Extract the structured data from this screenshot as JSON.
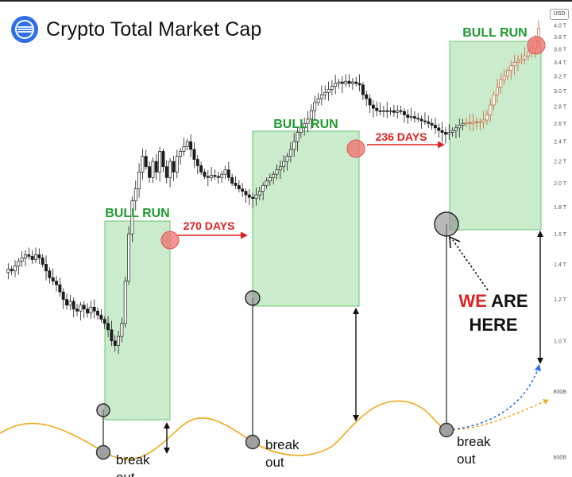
{
  "header": {
    "title": "Crypto Total Market Cap",
    "currency_badge": "USD"
  },
  "chart_data": {
    "type": "candlestick",
    "title": "Crypto Total Market Cap",
    "y_axis": {
      "scale": "log",
      "unit": "USD",
      "ticks": [
        {
          "label": "600B",
          "value": 0.6
        },
        {
          "label": "800B",
          "value": 0.8
        },
        {
          "label": "1.0 T",
          "value": 1.0
        },
        {
          "label": "1.2 T",
          "value": 1.2
        },
        {
          "label": "1.4 T",
          "value": 1.4
        },
        {
          "label": "1.6 T",
          "value": 1.6
        },
        {
          "label": "1.8 T",
          "value": 1.8
        },
        {
          "label": "2.0 T",
          "value": 2.0
        },
        {
          "label": "2.2 T",
          "value": 2.2
        },
        {
          "label": "2.4 T",
          "value": 2.4
        },
        {
          "label": "2.6 T",
          "value": 2.6
        },
        {
          "label": "2.8 T",
          "value": 2.8
        },
        {
          "label": "3.0 T",
          "value": 3.0
        },
        {
          "label": "3.2 T",
          "value": 3.2
        },
        {
          "label": "3.4 T",
          "value": 3.4
        },
        {
          "label": "3.6 T",
          "value": 3.6
        },
        {
          "label": "3.8 T",
          "value": 3.8
        },
        {
          "label": "4.0 T",
          "value": 4.0
        }
      ]
    },
    "colors": {
      "up": "#1c1c1c",
      "down": "#1c1c1c",
      "up_bull3": "#c5623a",
      "zone_fill": "#c6ebc8",
      "zone_stroke": "#5fbf64",
      "bull_label": "#1e9b2d",
      "days_label": "#e02020",
      "marker_top": "#f26d6d",
      "marker_bottom": "#8a8a8a",
      "wave": "#f0a81c",
      "projection_blue": "#2f6fe8",
      "projection_orange": "#f0a81c"
    },
    "bull_runs": [
      {
        "label": "BULL RUN"
      },
      {
        "label": "BULL RUN"
      },
      {
        "label": "BULL RUN"
      }
    ],
    "day_annotations": [
      {
        "label": "270 DAYS",
        "days": 270
      },
      {
        "label": "236 DAYS",
        "days": 236
      }
    ],
    "breakout_labels": [
      {
        "label": "break\nout"
      },
      {
        "label": "break\nout"
      },
      {
        "label": "break\nout"
      }
    ],
    "callout": {
      "prefix": "WE",
      "rest": "ARE",
      "line2": "HERE"
    },
    "series": [
      {
        "name": "market cap",
        "values": [
          1.35,
          1.37,
          1.36,
          1.39,
          1.42,
          1.44,
          1.46,
          1.45,
          1.43,
          1.46,
          1.44,
          1.4,
          1.36,
          1.32,
          1.3,
          1.28,
          1.24,
          1.2,
          1.17,
          1.19,
          1.15,
          1.14,
          1.17,
          1.15,
          1.13,
          1.16,
          1.14,
          1.12,
          1.1,
          1.08,
          1.05,
          1.0,
          0.98,
          1.02,
          1.08,
          1.3,
          1.6,
          1.85,
          1.95,
          2.1,
          2.25,
          2.15,
          2.05,
          2.2,
          2.1,
          2.3,
          2.15,
          2.05,
          2.2,
          2.1,
          2.25,
          2.3,
          2.35,
          2.4,
          2.32,
          2.22,
          2.16,
          2.1,
          2.06,
          2.05,
          2.07,
          2.06,
          2.05,
          2.08,
          2.12,
          2.05,
          2.0,
          1.98,
          1.95,
          1.93,
          1.9,
          1.88,
          1.87,
          1.9,
          1.93,
          1.98,
          2.02,
          2.05,
          2.08,
          2.12,
          2.15,
          2.2,
          2.25,
          2.32,
          2.4,
          2.5,
          2.55,
          2.6,
          2.65,
          2.75,
          2.85,
          2.9,
          2.95,
          2.98,
          3.02,
          3.06,
          3.1,
          3.12,
          3.1,
          3.13,
          3.1,
          3.12,
          3.1,
          3.08,
          2.95,
          2.9,
          2.82,
          2.78,
          2.75,
          2.74,
          2.75,
          2.74,
          2.75,
          2.73,
          2.75,
          2.74,
          2.7,
          2.67,
          2.68,
          2.66,
          2.65,
          2.63,
          2.62,
          2.6,
          2.58,
          2.55,
          2.52,
          2.5,
          2.48,
          2.5,
          2.52,
          2.55,
          2.58,
          2.6,
          2.61,
          2.6,
          2.62,
          2.61,
          2.62,
          2.64,
          2.7,
          2.82,
          2.95,
          3.05,
          3.15,
          3.2,
          3.28,
          3.35,
          3.4,
          3.42,
          3.45,
          3.5,
          3.55,
          3.62,
          3.75,
          3.95
        ]
      }
    ]
  }
}
